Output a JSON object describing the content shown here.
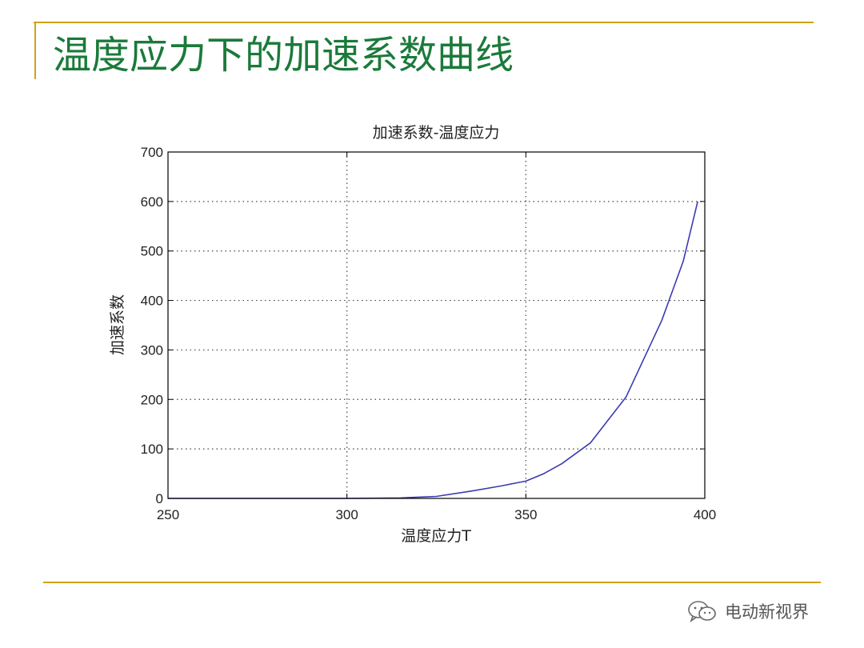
{
  "slide": {
    "title": "温度应力下的加速系数曲线",
    "watermark": "电动新视界",
    "accent_color": "#d4a017",
    "title_color": "#1a7a3a"
  },
  "chart_data": {
    "type": "line",
    "title": "加速系数-温度应力",
    "xlabel": "温度应力T",
    "ylabel": "加速系数",
    "xlim": [
      250,
      400
    ],
    "ylim": [
      0,
      700
    ],
    "xticks": [
      250,
      300,
      350,
      400
    ],
    "yticks": [
      0,
      100,
      200,
      300,
      400,
      500,
      600,
      700
    ],
    "grid": true,
    "series": [
      {
        "color": "#3b3bb0",
        "x": [
          250,
          300,
          315,
          325,
          335,
          343,
          350,
          355,
          360,
          368,
          378,
          388,
          394,
          398
        ],
        "y": [
          0,
          0,
          1,
          4,
          15,
          25,
          35,
          50,
          70,
          112,
          205,
          360,
          480,
          600
        ]
      }
    ]
  }
}
